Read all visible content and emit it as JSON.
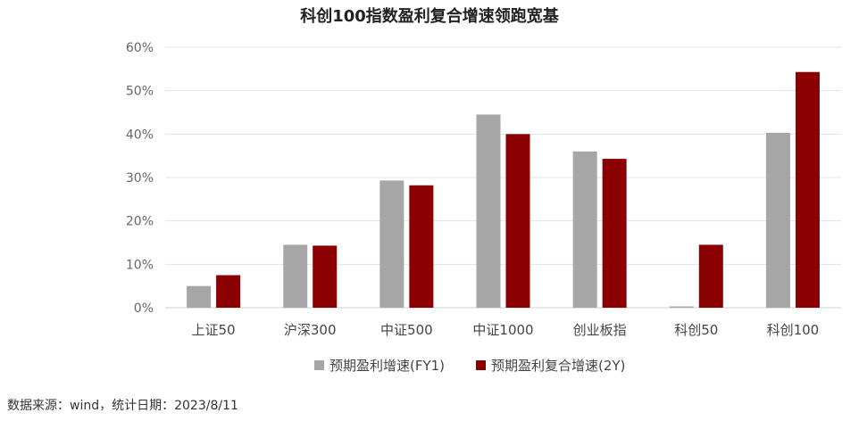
{
  "chart_data": {
    "type": "bar",
    "title": "科创100指数盈利复合增速领跑宽基",
    "categories": [
      "上证50",
      "沪深300",
      "中证500",
      "中证1000",
      "创业板指",
      "科创50",
      "科创100"
    ],
    "series": [
      {
        "name": "预期盈利增速(FY1)",
        "color": "#a6a6a6",
        "values": [
          5.0,
          14.5,
          29.3,
          44.5,
          36.0,
          0.3,
          40.3
        ]
      },
      {
        "name": "预期盈利复合增速(2Y)",
        "color": "#8b0000",
        "values": [
          7.5,
          14.3,
          28.2,
          40.0,
          34.3,
          14.5,
          54.3
        ]
      }
    ],
    "ylim": [
      0,
      60
    ],
    "yticks": [
      0,
      10,
      20,
      30,
      40,
      50,
      60
    ],
    "ytick_labels": [
      "0%",
      "10%",
      "20%",
      "30%",
      "40%",
      "50%",
      "60%"
    ],
    "grid": true,
    "legend_position": "bottom-center"
  },
  "source_note": "数据来源：wind，统计日期：2023/8/11"
}
